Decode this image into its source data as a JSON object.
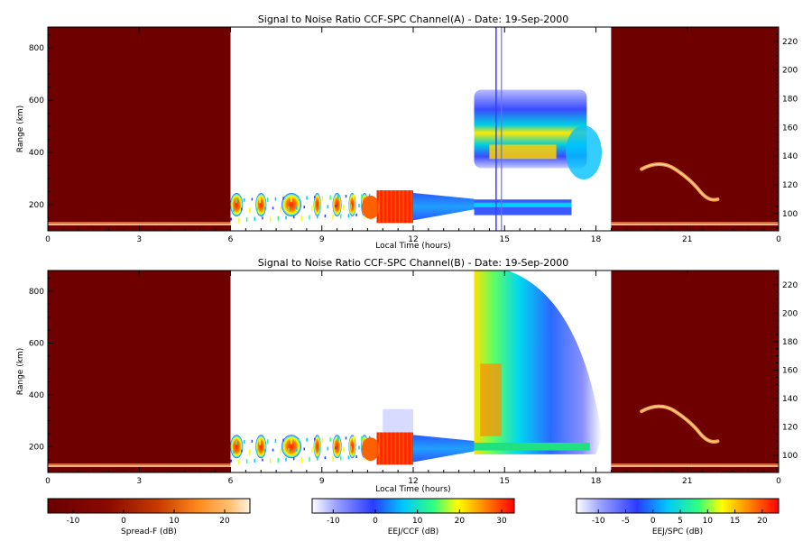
{
  "chart_data": [
    {
      "type": "heatmap",
      "title": "Signal to Noise Ratio CCF-SPC Channel(A) - Date: 19-Sep-2000",
      "xlabel": "Local Time (hours)",
      "ylabel": "Range (km)",
      "x_ticks": [
        "0",
        "3",
        "6",
        "9",
        "12",
        "15",
        "18",
        "21",
        "0"
      ],
      "y_ticks_left": [
        "200",
        "400",
        "600",
        "800"
      ],
      "y_ticks_right": [
        "100",
        "120",
        "140",
        "160",
        "180",
        "200",
        "220"
      ],
      "xlim": [
        0,
        24
      ],
      "ylim": [
        100,
        880
      ],
      "right_ylim": [
        88,
        230
      ],
      "segments": [
        {
          "mode": "Spread-F",
          "x_range": [
            0,
            6
          ],
          "colorbar": "Spread-F (dB)"
        },
        {
          "mode": "EEJ/CCF",
          "x_range": [
            6,
            14
          ],
          "colorbar": "EEJ/CCF (dB)"
        },
        {
          "mode": "EEJ/SPC",
          "x_range": [
            14,
            18.5
          ],
          "colorbar": "EEJ/SPC (dB)"
        },
        {
          "mode": "Spread-F",
          "x_range": [
            18.5,
            24
          ],
          "colorbar": "Spread-F (dB)"
        }
      ],
      "features": [
        {
          "x": [
            6,
            12
          ],
          "range_km": [
            140,
            260
          ],
          "description": "lower echo blobs up to ~30 dB"
        },
        {
          "x": [
            12,
            14
          ],
          "range_km": [
            180,
            240
          ],
          "description": "EEJ/CCF ~0 dB"
        },
        {
          "x": [
            14,
            17.5
          ],
          "range_km": [
            330,
            470
          ],
          "description": "EEJ/SPC layer ~15 dB"
        },
        {
          "x": [
            14,
            17.5
          ],
          "range_km": [
            150,
            240
          ],
          "description": "EEJ/SPC lower layer"
        },
        {
          "x": [
            19.5,
            22
          ],
          "altitude_km": [
            115,
            135
          ],
          "description": "Spread-F trace"
        }
      ]
    },
    {
      "type": "heatmap",
      "title": "Signal to Noise Ratio CCF-SPC Channel(B) - Date: 19-Sep-2000",
      "xlabel": "Local Time (hours)",
      "ylabel": "Range (km)",
      "x_ticks": [
        "0",
        "3",
        "6",
        "9",
        "12",
        "15",
        "18",
        "21",
        "0"
      ],
      "y_ticks_left": [
        "200",
        "400",
        "600",
        "800"
      ],
      "y_ticks_right": [
        "100",
        "120",
        "140",
        "160",
        "180",
        "200",
        "220"
      ],
      "xlim": [
        0,
        24
      ],
      "ylim": [
        100,
        880
      ],
      "right_ylim": [
        88,
        230
      ],
      "segments": [
        {
          "mode": "Spread-F",
          "x_range": [
            0,
            6
          ],
          "colorbar": "Spread-F (dB)"
        },
        {
          "mode": "EEJ/CCF",
          "x_range": [
            6,
            14
          ],
          "colorbar": "EEJ/CCF (dB)"
        },
        {
          "mode": "EEJ/SPC",
          "x_range": [
            14,
            18.5
          ],
          "colorbar": "EEJ/SPC (dB)"
        },
        {
          "mode": "Spread-F",
          "x_range": [
            18.5,
            24
          ],
          "colorbar": "Spread-F (dB)"
        }
      ],
      "features": [
        {
          "x": [
            6,
            12
          ],
          "range_km": [
            140,
            260
          ],
          "description": "lower echo blobs up to ~30 dB"
        },
        {
          "x": [
            14,
            18
          ],
          "range_km": [
            170,
            880
          ],
          "description": "broad EEJ/SPC echo 0-10 dB"
        },
        {
          "x": [
            19.5,
            22
          ],
          "altitude_km": [
            115,
            135
          ],
          "description": "Spread-F trace"
        }
      ]
    }
  ],
  "colorbars": [
    {
      "label": "Spread-F (dB)",
      "ticks": [
        "-10",
        "0",
        "10",
        "20"
      ],
      "range": [
        -15,
        25
      ],
      "colors": [
        "#6a0000",
        "#8a0a00",
        "#b32a00",
        "#e05a00",
        "#ff8c20",
        "#ffc070",
        "#fff2e0"
      ]
    },
    {
      "label": "EEJ/CCF (dB)",
      "ticks": [
        "-10",
        "0",
        "10",
        "20",
        "30"
      ],
      "range": [
        -15,
        33
      ],
      "colors": [
        "#ffffff",
        "#9aa0ff",
        "#2a3cff",
        "#00c8ff",
        "#30ff80",
        "#ffff00",
        "#ff8000",
        "#ff0000"
      ]
    },
    {
      "label": "EEJ/SPC (dB)",
      "ticks": [
        "-10",
        "-5",
        "0",
        "5",
        "10",
        "15",
        "20"
      ],
      "range": [
        -14,
        23
      ],
      "colors": [
        "#ffffff",
        "#9aa0ff",
        "#2a3cff",
        "#00c8ff",
        "#30ff80",
        "#ffff00",
        "#ff8000",
        "#ff0000"
      ]
    }
  ]
}
